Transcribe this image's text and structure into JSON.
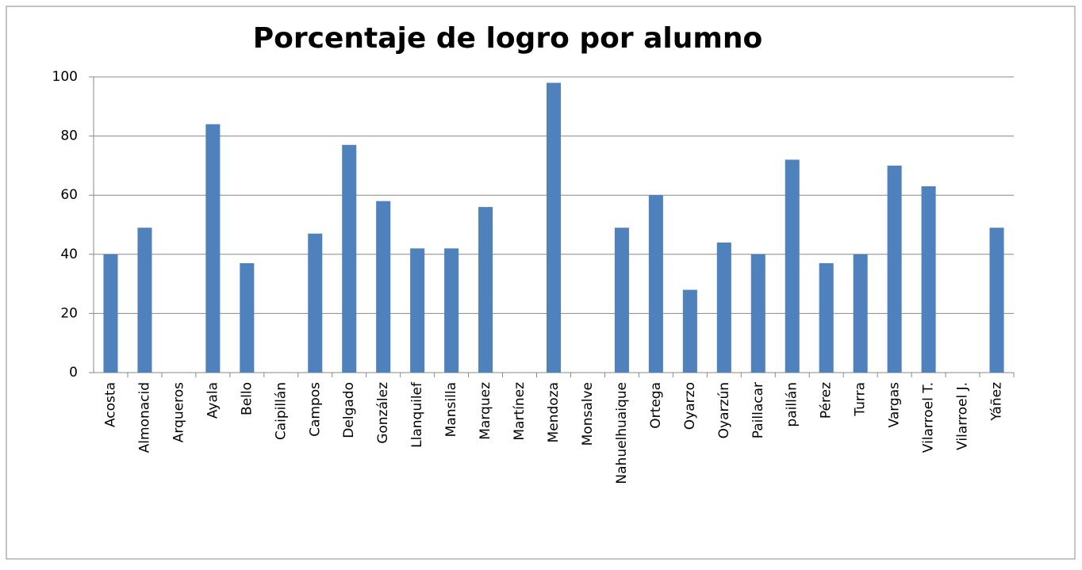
{
  "chart_data": {
    "type": "bar",
    "title": "Porcentaje de logro por alumno",
    "categories": [
      "Acosta",
      "Almonacid",
      "Arqueros",
      "Ayala",
      "Bello",
      "Caipillán",
      "Campos",
      "Delgado",
      "González",
      "Llanquilef",
      "Mansilla",
      "Marquez",
      "Martínez",
      "Mendoza",
      "Monsalve",
      "Nahuelhuaique",
      "Ortega",
      "Oyarzo",
      "Oyarzún",
      "Paillacar",
      "paillán",
      "Pérez",
      "Turra",
      "Vargas",
      "Vilarroel T.",
      "Vilarroel J.",
      "Yáñez"
    ],
    "values": [
      40,
      49,
      0,
      84,
      37,
      0,
      47,
      77,
      58,
      42,
      42,
      56,
      0,
      98,
      0,
      49,
      60,
      28,
      44,
      40,
      72,
      37,
      40,
      70,
      63,
      0,
      49
    ],
    "color": "#4f81bd",
    "ylim": [
      0,
      100
    ],
    "yticks": [
      0,
      20,
      40,
      60,
      80,
      100
    ],
    "grid": true
  }
}
